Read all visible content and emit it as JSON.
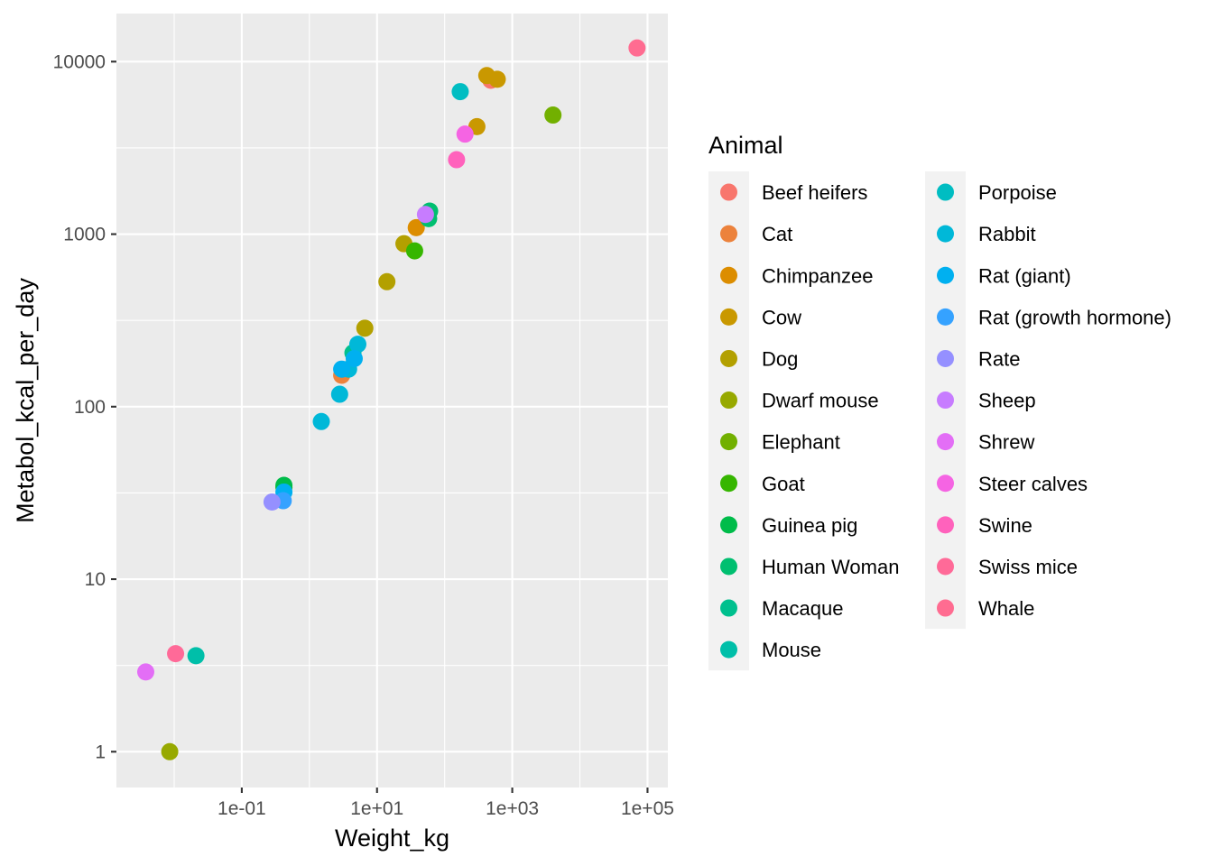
{
  "chart_data": {
    "type": "scatter",
    "xlabel": "Weight_kg",
    "ylabel": "Metabol_kcal_per_day",
    "x_scale": "log10",
    "y_scale": "log10",
    "xlim": [
      0.0014,
      200000
    ],
    "ylim": [
      0.62,
      19000
    ],
    "x_ticks": [
      {
        "value": 0.1,
        "label": "1e-01"
      },
      {
        "value": 10,
        "label": "1e+01"
      },
      {
        "value": 1000,
        "label": "1e+03"
      },
      {
        "value": 100000,
        "label": "1e+05"
      }
    ],
    "y_ticks": [
      {
        "value": 1,
        "label": "1"
      },
      {
        "value": 10,
        "label": "10"
      },
      {
        "value": 100,
        "label": "100"
      },
      {
        "value": 1000,
        "label": "1000"
      },
      {
        "value": 10000,
        "label": "10000"
      }
    ],
    "grid": true,
    "panel_background": "#ebebeb",
    "legend": {
      "title": "Animal",
      "position": "right",
      "columns": 2
    },
    "series": [
      {
        "name": "Beef heifers",
        "color": "#F8766D",
        "points": [
          {
            "x": 482,
            "y": 7800
          }
        ]
      },
      {
        "name": "Cat",
        "color": "#EC823C",
        "points": [
          {
            "x": 3.0,
            "y": 152
          }
        ]
      },
      {
        "name": "Chimpanzee",
        "color": "#DC8D00",
        "points": [
          {
            "x": 38,
            "y": 1090
          }
        ]
      },
      {
        "name": "Cow",
        "color": "#C99800",
        "points": [
          {
            "x": 420,
            "y": 8300
          },
          {
            "x": 600,
            "y": 7900
          },
          {
            "x": 300,
            "y": 4200
          }
        ]
      },
      {
        "name": "Dog",
        "color": "#B3A000",
        "points": [
          {
            "x": 6.6,
            "y": 285
          },
          {
            "x": 14,
            "y": 530
          },
          {
            "x": 25,
            "y": 880
          }
        ]
      },
      {
        "name": "Dwarf mouse",
        "color": "#97A900",
        "points": [
          {
            "x": 0.0086,
            "y": 1.0
          }
        ]
      },
      {
        "name": "Elephant",
        "color": "#72B000",
        "points": [
          {
            "x": 4000,
            "y": 4900
          }
        ]
      },
      {
        "name": "Goat",
        "color": "#36B600",
        "points": [
          {
            "x": 36,
            "y": 800
          },
          {
            "x": 0.42,
            "y": 34
          }
        ]
      },
      {
        "name": "Guinea pig",
        "color": "#00BC4A",
        "points": [
          {
            "x": 0.42,
            "y": 35
          }
        ]
      },
      {
        "name": "Human Woman",
        "color": "#00BF70",
        "points": [
          {
            "x": 60,
            "y": 1360
          },
          {
            "x": 58,
            "y": 1230
          }
        ]
      },
      {
        "name": "Macaque",
        "color": "#00C08E",
        "points": [
          {
            "x": 4.4,
            "y": 205
          }
        ]
      },
      {
        "name": "Mouse",
        "color": "#00BFA9",
        "points": [
          {
            "x": 0.021,
            "y": 3.6
          }
        ]
      },
      {
        "name": "Porpoise",
        "color": "#00BDC2",
        "points": [
          {
            "x": 170,
            "y": 6700
          }
        ]
      },
      {
        "name": "Rabbit",
        "color": "#00B8D8",
        "points": [
          {
            "x": 5.2,
            "y": 230
          },
          {
            "x": 3.8,
            "y": 165
          },
          {
            "x": 2.8,
            "y": 118
          },
          {
            "x": 1.5,
            "y": 82
          }
        ]
      },
      {
        "name": "Rat (giant)",
        "color": "#00B0F0",
        "points": [
          {
            "x": 0.42,
            "y": 32
          },
          {
            "x": 3.0,
            "y": 165
          },
          {
            "x": 4.6,
            "y": 190
          }
        ]
      },
      {
        "name": "Rat (growth hormone)",
        "color": "#35A2FF",
        "points": [
          {
            "x": 0.41,
            "y": 28.5
          }
        ]
      },
      {
        "name": "Rate",
        "color": "#9590FF",
        "points": [
          {
            "x": 0.28,
            "y": 28
          }
        ]
      },
      {
        "name": "Sheep",
        "color": "#C77CFF",
        "points": [
          {
            "x": 52,
            "y": 1300
          }
        ]
      },
      {
        "name": "Shrew",
        "color": "#E36EF6",
        "points": [
          {
            "x": 0.0038,
            "y": 2.9
          }
        ]
      },
      {
        "name": "Steer calves",
        "color": "#F564E3",
        "points": [
          {
            "x": 200,
            "y": 3800
          }
        ]
      },
      {
        "name": "Swine",
        "color": "#FF62BC",
        "points": [
          {
            "x": 150,
            "y": 2700
          }
        ]
      },
      {
        "name": "Swiss mice",
        "color": "#FF6A98",
        "points": [
          {
            "x": 0.0105,
            "y": 3.7
          }
        ]
      },
      {
        "name": "Whale",
        "color": "#FF6C91",
        "points": [
          {
            "x": 70000,
            "y": 12000
          }
        ]
      }
    ]
  }
}
